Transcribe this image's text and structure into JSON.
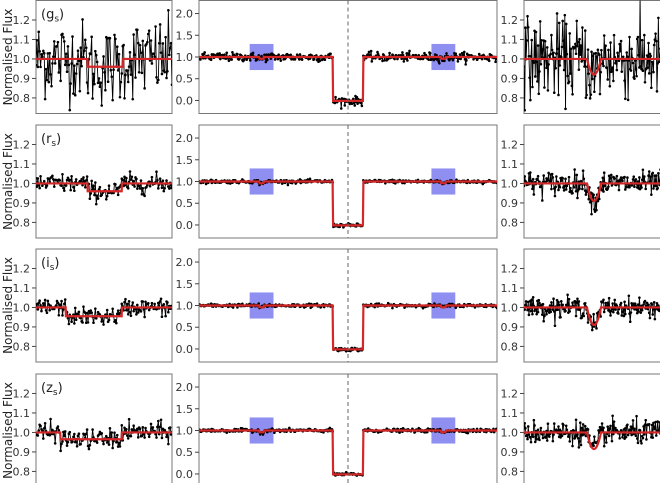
{
  "chart_data": {
    "type": "line",
    "ylabel": "Normalised Flux",
    "bands": [
      {
        "label": "g",
        "sub": "s",
        "left_noise": 0.1,
        "mid_noise": 0.05,
        "right_noise": 0.1,
        "left_dip": [
          0.38,
          0.64,
          0.96
        ],
        "right_dip_depth": 0.92
      },
      {
        "label": "r",
        "sub": "s",
        "left_noise": 0.025,
        "mid_noise": 0.02,
        "right_noise": 0.03,
        "left_dip": [
          0.38,
          0.63,
          0.96
        ],
        "right_dip_depth": 0.91
      },
      {
        "label": "i",
        "sub": "s",
        "left_noise": 0.022,
        "mid_noise": 0.02,
        "right_noise": 0.025,
        "left_dip": [
          0.22,
          0.63,
          0.955
        ],
        "right_dip_depth": 0.91
      },
      {
        "label": "z",
        "sub": "s",
        "left_noise": 0.025,
        "mid_noise": 0.02,
        "right_noise": 0.03,
        "left_dip": [
          0.18,
          0.63,
          0.965
        ],
        "right_dip_depth": 0.915
      }
    ],
    "left_panel": {
      "ylim": [
        0.72,
        1.3
      ],
      "yticks": [
        "0.8",
        "0.9",
        "1.0",
        "1.1",
        "1.2"
      ],
      "ytick_values": [
        0.8,
        0.9,
        1.0,
        1.1,
        1.2
      ]
    },
    "mid_panel": {
      "ylim": [
        -0.3,
        2.3
      ],
      "yticks": [
        "0.0",
        "0.5",
        "1.0",
        "1.5",
        "2.0"
      ],
      "ytick_values": [
        0,
        0.5,
        1.0,
        1.5,
        2.0
      ],
      "eclipse": [
        0.45,
        0.55,
        -0.01
      ],
      "center_line": 0.5,
      "highlight_boxes": [
        [
          0.17,
          0.25,
          0.7,
          1.3
        ],
        [
          0.78,
          0.86,
          0.7,
          1.3
        ]
      ],
      "secondary_dips": [
        0.21,
        0.82
      ]
    },
    "right_panel": {
      "ylim": [
        0.72,
        1.3
      ],
      "yticks": [
        "0.8",
        "0.9",
        "1.0",
        "1.1",
        "1.2"
      ],
      "ytick_values": [
        0.8,
        0.9,
        1.0,
        1.1,
        1.2
      ],
      "dip_center": 0.5,
      "dip_width": 0.05
    },
    "colors": {
      "data": "#000000",
      "model": "#d62728",
      "box": "#7b7bf0",
      "frame": "#777777"
    }
  }
}
